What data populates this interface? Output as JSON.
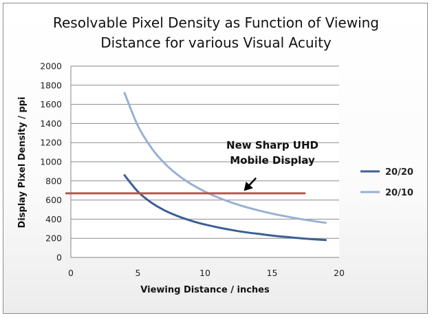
{
  "chart_data": {
    "type": "line",
    "title_lines": [
      "Resolvable Pixel Density as Function of Viewing",
      "Distance for various Visual Acuity"
    ],
    "xlabel": "Viewing Distance / inches",
    "ylabel": "Display Pixel Density / ppi",
    "xlim": [
      0,
      20
    ],
    "ylim": [
      0,
      2000
    ],
    "x_ticks": [
      0,
      5,
      10,
      15,
      20
    ],
    "y_ticks": [
      0,
      200,
      400,
      600,
      800,
      1000,
      1200,
      1400,
      1600,
      1800,
      2000
    ],
    "grid": "horizontal",
    "legend_position": "right",
    "series": [
      {
        "name": "20/20",
        "color": "#3a5f94",
        "x": [
          4,
          5,
          6,
          7,
          8,
          9,
          10,
          11,
          12,
          13,
          14,
          15,
          16,
          17,
          18,
          19
        ],
        "y": [
          859,
          688,
          573,
          491,
          430,
          382,
          344,
          313,
          286,
          264,
          246,
          229,
          215,
          202,
          191,
          181
        ]
      },
      {
        "name": "20/10",
        "color": "#98b0d4",
        "x": [
          4,
          5,
          6,
          7,
          8,
          9,
          10,
          11,
          12,
          13,
          14,
          15,
          16,
          17,
          18,
          19
        ],
        "y": [
          1719,
          1375,
          1146,
          982,
          859,
          764,
          688,
          625,
          573,
          529,
          491,
          458,
          430,
          404,
          382,
          362
        ]
      }
    ],
    "reference_line": {
      "y": 670,
      "x_range": [
        -0.4,
        17.5
      ],
      "color": "#c0504d"
    },
    "annotation": {
      "lines": [
        "New Sharp UHD",
        "Mobile Display"
      ],
      "arrow_from": [
        13.8,
        830
      ],
      "arrow_to": [
        12.9,
        695
      ]
    }
  }
}
